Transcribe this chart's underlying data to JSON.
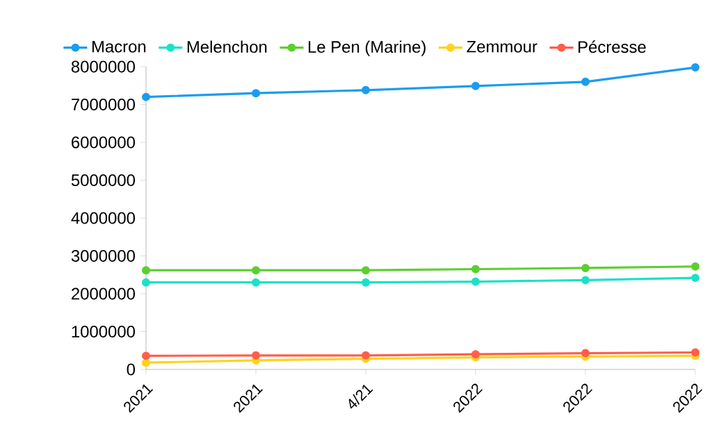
{
  "chart_data": {
    "type": "line",
    "categories": [
      "2021",
      "2021",
      "4/21",
      "2022",
      "2022",
      "2022"
    ],
    "series": [
      {
        "name": "Macron",
        "color": "#1a9cf0",
        "values": [
          7200000,
          7300000,
          7380000,
          7490000,
          7600000,
          7980000
        ]
      },
      {
        "name": "Melenchon",
        "color": "#1ae2c8",
        "values": [
          2300000,
          2300000,
          2300000,
          2320000,
          2360000,
          2420000
        ]
      },
      {
        "name": "Le Pen (Marine)",
        "color": "#5ccf30",
        "values": [
          2620000,
          2620000,
          2620000,
          2650000,
          2680000,
          2720000
        ]
      },
      {
        "name": "Zemmour",
        "color": "#ffd21e",
        "values": [
          180000,
          240000,
          280000,
          320000,
          340000,
          360000
        ]
      },
      {
        "name": "Pécresse",
        "color": "#ff5f4a",
        "values": [
          360000,
          370000,
          370000,
          400000,
          430000,
          450000
        ]
      }
    ],
    "ylim": [
      0,
      8000000
    ],
    "yticks": [
      0,
      1000000,
      2000000,
      3000000,
      4000000,
      5000000,
      6000000,
      7000000,
      8000000
    ],
    "grid": false,
    "legend": "top",
    "marker": "circle",
    "line_style": "solid"
  }
}
